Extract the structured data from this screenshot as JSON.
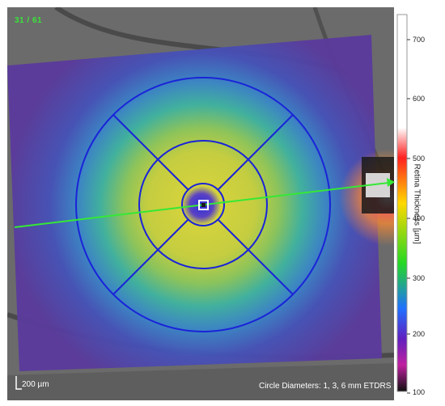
{
  "image_counter": "31 / 61",
  "scale_bar_text": "200 µm",
  "circle_diameters_text": "Circle Diameters: 1, 3, 6 mm ETDRS",
  "colorbar": {
    "label": "Retina Thickness [µm]",
    "ticks": [
      "700",
      "600",
      "500",
      "400",
      "300",
      "200",
      "100"
    ]
  },
  "colors": {
    "counter": "#39e639",
    "grid": "#1a24d8",
    "scan_line": "#35e835",
    "background_gray": "#6e6e6e"
  }
}
